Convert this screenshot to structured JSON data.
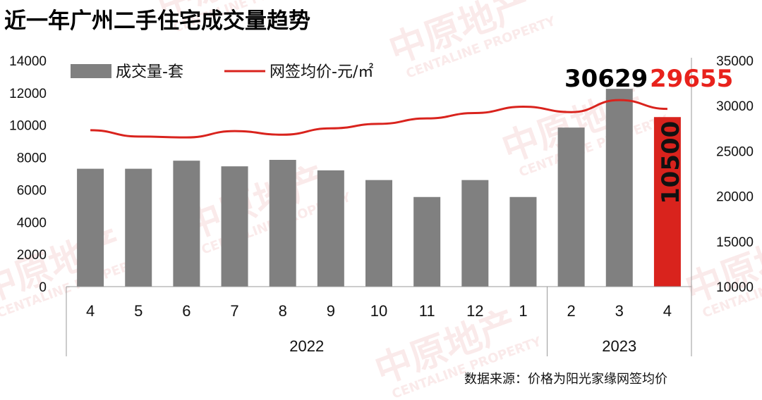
{
  "chart_data": {
    "type": "bar",
    "title": "近一年广州二手住宅成交量趋势",
    "categories": [
      "4",
      "5",
      "6",
      "7",
      "8",
      "9",
      "10",
      "11",
      "12",
      "1",
      "2",
      "3",
      "4"
    ],
    "year_groups": [
      {
        "label": "2022",
        "start": 0,
        "end": 9
      },
      {
        "label": "2023",
        "start": 10,
        "end": 12
      }
    ],
    "y_left": {
      "min": 0,
      "max": 14000,
      "ticks": [
        0,
        2000,
        4000,
        6000,
        8000,
        10000,
        12000,
        14000
      ]
    },
    "y_right": {
      "min": 10000,
      "max": 35000,
      "ticks": [
        10000,
        15000,
        20000,
        25000,
        30000,
        35000
      ]
    },
    "series": [
      {
        "name": "成交量-套",
        "type": "bar",
        "axis": "left",
        "color": "#808080",
        "highlight_color": "#d9231d",
        "values": [
          7300,
          7300,
          7800,
          7450,
          7850,
          7200,
          6600,
          5550,
          6600,
          5550,
          9850,
          12250,
          10500
        ]
      },
      {
        "name": "网签均价-元/㎡",
        "type": "line",
        "axis": "right",
        "color": "#d9231d",
        "values": [
          27300,
          26600,
          26500,
          27200,
          26800,
          27500,
          28000,
          28600,
          29200,
          29900,
          29300,
          30629,
          29655
        ]
      }
    ],
    "annotations": {
      "last_bar_value": "10500",
      "line_value_mar": "30629",
      "line_value_apr": "29655"
    },
    "source_note": "数据来源：价格为阳光家缘网签均价",
    "watermark": {
      "cn": "中原地产",
      "en": "CENTALINE PROPERTY"
    }
  }
}
